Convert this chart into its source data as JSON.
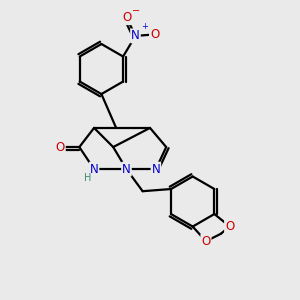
{
  "background_color": "#eaeaea",
  "bond_color": "#000000",
  "bond_width": 1.6,
  "atom_colors": {
    "N": "#0000cc",
    "O": "#cc0000",
    "H": "#3a8a7a"
  },
  "font_size_atom": 8.5,
  "fig_width": 3.0,
  "fig_height": 3.0,
  "dpi": 100
}
